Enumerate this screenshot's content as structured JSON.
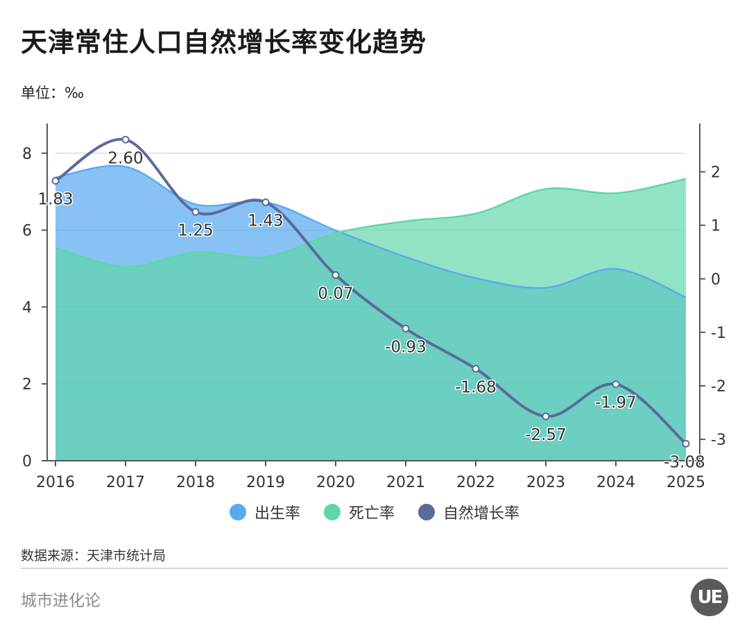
{
  "header": {
    "title": "天津常住人口自然增长率变化趋势",
    "unit_label": "单位：‰"
  },
  "footer": {
    "source": "数据来源：天津市统计局",
    "brand": "城市进化论",
    "logo_text": "UE"
  },
  "colors": {
    "birth": "#5aaaf0",
    "death": "#5fd6a8",
    "natural": "#5a6a9a",
    "overlap": "#6ed3c0",
    "grid": "#dcdcdc",
    "axis": "#555555"
  },
  "chart_data": {
    "type": "area",
    "title": "天津常住人口自然增长率变化趋势",
    "x": [
      "2016",
      "2017",
      "2018",
      "2019",
      "2020",
      "2021",
      "2022",
      "2023",
      "2024",
      "2025"
    ],
    "left_axis": {
      "ticks": [
        "0",
        "2",
        "4",
        "6",
        "8"
      ],
      "ylim": [
        0,
        8.7
      ]
    },
    "right_axis": {
      "ticks": [
        "-3",
        "-2",
        "-1",
        "0",
        "1",
        "2"
      ],
      "ylim": [
        -3.4,
        2.85
      ]
    },
    "series": [
      {
        "name": "出生率",
        "axis": "left",
        "kind": "area",
        "values": [
          7.37,
          7.65,
          6.67,
          6.73,
          5.99,
          5.3,
          4.75,
          4.5,
          4.99,
          4.25
        ]
      },
      {
        "name": "死亡率",
        "axis": "left",
        "kind": "area",
        "values": [
          5.54,
          5.05,
          5.42,
          5.3,
          5.92,
          6.23,
          6.43,
          7.07,
          6.96,
          7.33
        ]
      },
      {
        "name": "自然增长率",
        "axis": "right",
        "kind": "line",
        "values": [
          1.83,
          2.6,
          1.25,
          1.43,
          0.07,
          -0.93,
          -1.68,
          -2.57,
          -1.97,
          -3.08
        ],
        "labels": [
          "1.83",
          "2.60",
          "1.25",
          "1.43",
          "0.07",
          "-0.93",
          "-1.68",
          "-2.57",
          "-1.97",
          "-3.08"
        ]
      }
    ],
    "legend": [
      "出生率",
      "死亡率",
      "自然增长率"
    ],
    "legend_position": "bottom",
    "grid": true
  }
}
